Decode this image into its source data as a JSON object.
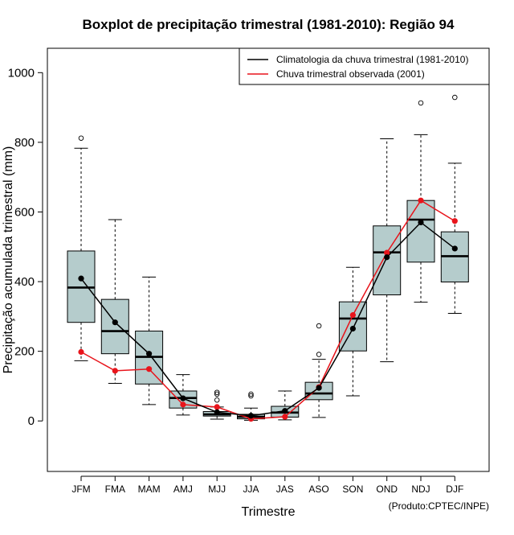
{
  "chart_data": {
    "type": "boxplot",
    "title": "Boxplot de precipitação trimestral (1981-2010): Região 94",
    "xlabel": "Trimestre",
    "ylabel": "Precipitação acumulada trimestral (mm)",
    "credit": "(Produto:CPTEC/INPE)",
    "ylim": [
      -145,
      1070
    ],
    "yticks": [
      0,
      200,
      400,
      600,
      800,
      1000
    ],
    "categories": [
      "JFM",
      "FMA",
      "MAM",
      "AMJ",
      "MJJ",
      "JJA",
      "JAS",
      "ASO",
      "SON",
      "OND",
      "NDJ",
      "DJF"
    ],
    "boxes": [
      {
        "whisker_low": 173,
        "q1": 283,
        "median": 383,
        "q3": 488,
        "whisker_high": 783,
        "outliers": [
          812
        ]
      },
      {
        "whisker_low": 108,
        "q1": 193,
        "median": 258,
        "q3": 349,
        "whisker_high": 578,
        "outliers": []
      },
      {
        "whisker_low": 47,
        "q1": 106,
        "median": 184,
        "q3": 258,
        "whisker_high": 413,
        "outliers": []
      },
      {
        "whisker_low": 17,
        "q1": 37,
        "median": 66,
        "q3": 86,
        "whisker_high": 133,
        "outliers": []
      },
      {
        "whisker_low": 5,
        "q1": 14,
        "median": 19,
        "q3": 27,
        "whisker_high": 40,
        "outliers": [
          60,
          77,
          82
        ]
      },
      {
        "whisker_low": 2,
        "q1": 6,
        "median": 12,
        "q3": 19,
        "whisker_high": 37,
        "outliers": [
          72,
          77
        ]
      },
      {
        "whisker_low": 3,
        "q1": 11,
        "median": 24,
        "q3": 42,
        "whisker_high": 86,
        "outliers": []
      },
      {
        "whisker_low": 10,
        "q1": 61,
        "median": 79,
        "q3": 111,
        "whisker_high": 177,
        "outliers": [
          191,
          273
        ]
      },
      {
        "whisker_low": 72,
        "q1": 201,
        "median": 294,
        "q3": 342,
        "whisker_high": 441,
        "outliers": []
      },
      {
        "whisker_low": 170,
        "q1": 362,
        "median": 484,
        "q3": 560,
        "whisker_high": 810,
        "outliers": []
      },
      {
        "whisker_low": 341,
        "q1": 456,
        "median": 578,
        "q3": 633,
        "whisker_high": 822,
        "outliers": [
          913
        ]
      },
      {
        "whisker_low": 309,
        "q1": 399,
        "median": 473,
        "q3": 543,
        "whisker_high": 740,
        "outliers": [
          929
        ]
      }
    ],
    "series": [
      {
        "name": "Climatologia da chuva trimestral (1981-2010)",
        "color": "#000000",
        "values": [
          409,
          283,
          193,
          65,
          25,
          15,
          29,
          95,
          265,
          470,
          570,
          495
        ]
      },
      {
        "name": "Chuva trimestral observada (2001)",
        "color": "#e8141b",
        "values": [
          198,
          144,
          149,
          47,
          40,
          6,
          12,
          97,
          304,
          483,
          633,
          574
        ]
      }
    ],
    "legend_position": "top-right",
    "box_fill": "#b5cccc"
  }
}
